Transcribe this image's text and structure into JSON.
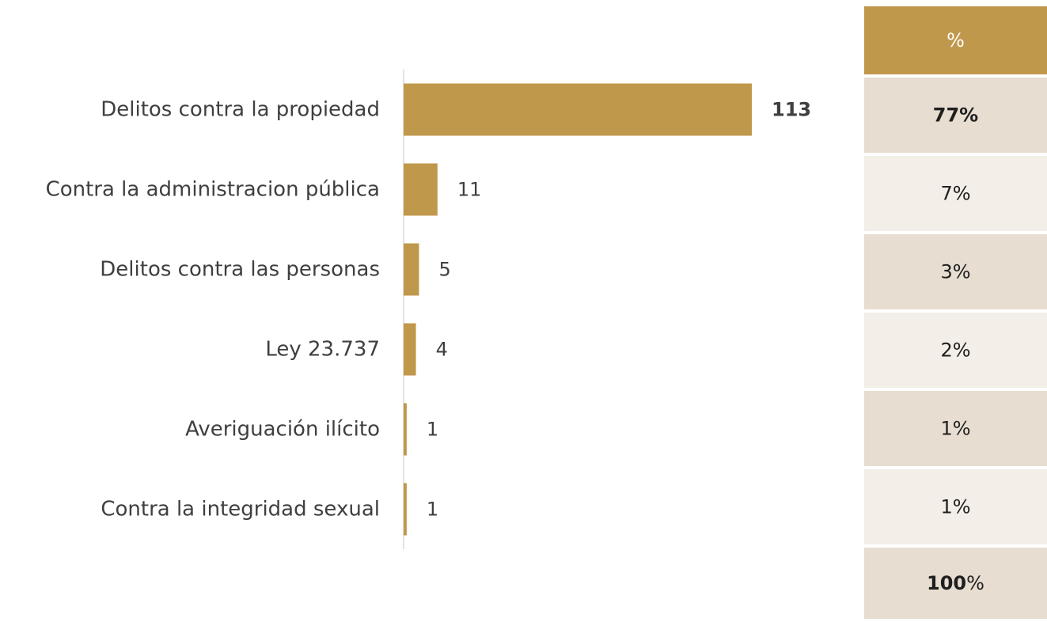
{
  "chart_data": {
    "type": "bar",
    "orientation": "horizontal",
    "categories": [
      "Delitos contra la propiedad",
      "Contra la administracion pública",
      "Delitos contra las personas",
      "Ley 23.737",
      "Averiguación ilícito",
      "Contra la integridad sexual"
    ],
    "values": [
      113,
      11,
      5,
      4,
      1,
      1
    ],
    "xlim": [
      0,
      113
    ],
    "grid": false,
    "bar_color": "#C0984B",
    "axis_color": "#D9D9D9"
  },
  "table": {
    "header": "%",
    "rows": [
      "77%",
      "7%",
      "3%",
      "2%",
      "1%",
      "1%"
    ],
    "total": {
      "number": "100",
      "symbol": "%"
    },
    "colors": {
      "header_bg": "#C0984B",
      "row_dark": "#E7DDD1",
      "row_light": "#F3EEE8",
      "header_text": "#FFFFFF"
    }
  }
}
